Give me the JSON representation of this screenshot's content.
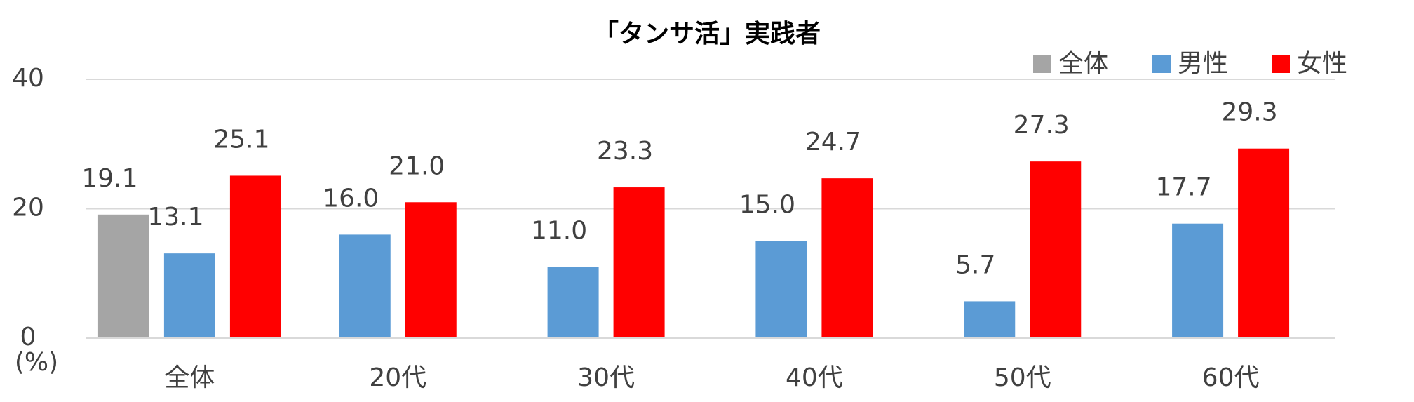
{
  "chart_data": {
    "type": "bar",
    "title": "「タンサ活」実践者",
    "y_label": "(%)",
    "categories": [
      "全体",
      "20代",
      "30代",
      "40代",
      "50代",
      "60代"
    ],
    "series": [
      {
        "name": "全体",
        "color": "#a5a5a5",
        "values": [
          19.1,
          null,
          null,
          null,
          null,
          null
        ],
        "value_labels": [
          "19.1",
          null,
          null,
          null,
          null,
          null
        ]
      },
      {
        "name": "男性",
        "color": "#5b9bd5",
        "values": [
          13.1,
          16.0,
          11.0,
          15.0,
          5.7,
          17.7
        ],
        "value_labels": [
          "13.1",
          "16.0",
          "11.0",
          "15.0",
          "5.7",
          "17.7"
        ]
      },
      {
        "name": "女性",
        "color": "#ff0000",
        "values": [
          25.1,
          21.0,
          23.3,
          24.7,
          27.3,
          29.3
        ],
        "value_labels": [
          "25.1",
          "21.0",
          "23.3",
          "24.7",
          "27.3",
          "29.3"
        ]
      }
    ],
    "ylim": [
      0,
      40
    ],
    "yticks": [
      0,
      20,
      40
    ],
    "grid": true,
    "legend": "top-right"
  }
}
